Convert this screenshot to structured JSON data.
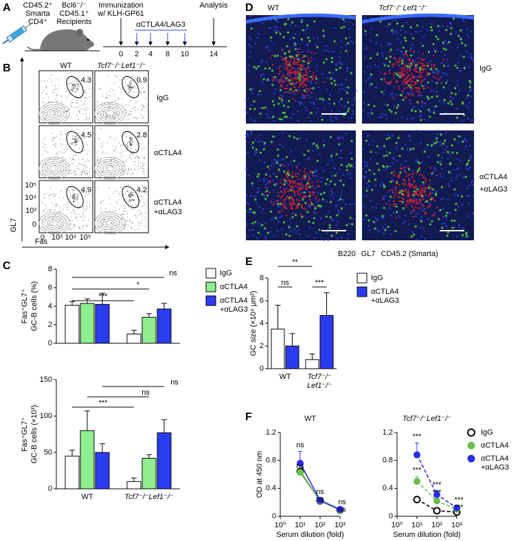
{
  "panel_labels": [
    "A",
    "B",
    "C",
    "D",
    "E",
    "F"
  ],
  "panel_a": {
    "donor": [
      "CD45.2⁺",
      "Smarta",
      "CD4⁺"
    ],
    "recipients": [
      "Bcl6⁻/⁻",
      "CD45.1⁺",
      "Recipients"
    ],
    "immunization": [
      "Immunization",
      "w/ KLH-GP61"
    ],
    "treatment": "αCTLA4/LAG3",
    "analysis": "Analysis",
    "days": [
      0,
      2,
      4,
      8,
      10,
      14
    ]
  },
  "panel_b": {
    "columns": [
      "WT",
      "Tcf7⁻/⁻Lef1⁻/⁻"
    ],
    "rows": [
      "IgG",
      "αCTLA4",
      "αCTLA4 +αLAG3"
    ],
    "gate_values": [
      [
        4.3,
        0.9
      ],
      [
        4.5,
        2.8
      ],
      [
        4.9,
        4.2
      ]
    ],
    "x_label": "Fas",
    "y_label": "GL7",
    "x_ticks": [
      "0",
      "10³",
      "10⁴",
      "10⁵"
    ],
    "y_ticks": [
      "10⁵",
      "10⁴",
      "10³",
      "0"
    ]
  },
  "panel_d": {
    "columns": [
      "WT",
      "Tcf7⁻/⁻Lef1⁻/⁻"
    ],
    "rows": [
      "IgG",
      "αCTLA4 +αLAG3"
    ],
    "stains": [
      {
        "name": "B220",
        "color": "#2f46f0"
      },
      {
        "name": "GL7",
        "color": "#e0222a"
      },
      {
        "name": "CD45.2 (Smarta)",
        "color": "#4cbb3c"
      }
    ]
  },
  "chart_data": [
    {
      "type": "bar",
      "ylabel": [
        "Fas⁺GL7⁺",
        "GC-B cells (%)"
      ],
      "categories": [
        null,
        null
      ],
      "ylim": [
        0,
        8
      ],
      "yticks": [
        0,
        2,
        4,
        6,
        8
      ],
      "series": [
        {
          "name": "IgG",
          "color": "#ffffff",
          "values": [
            4.1,
            1.0
          ],
          "errors": [
            0.4,
            0.4
          ]
        },
        {
          "name": "αCTLA4",
          "color": "#90ee90",
          "values": [
            4.3,
            2.8
          ],
          "errors": [
            0.5,
            0.4
          ]
        },
        {
          "name": "αCTLA4 +αLAG3",
          "color": "#2b3cf0",
          "values": [
            4.2,
            3.7
          ],
          "errors": [
            1.2,
            0.6
          ]
        }
      ],
      "annotations": [
        "***",
        "*",
        "ns"
      ],
      "legend": true
    },
    {
      "type": "bar",
      "ylabel": [
        "Fas⁺GL7⁺",
        "GC-B cells (×10³)"
      ],
      "categories": [
        "WT",
        "Tcf7⁻/⁻Lef1⁻/⁻"
      ],
      "ylim": [
        0,
        150
      ],
      "yticks": [
        0,
        50,
        100,
        150
      ],
      "series": [
        {
          "name": "IgG",
          "color": "#ffffff",
          "values": [
            45,
            10
          ],
          "errors": [
            8,
            5
          ]
        },
        {
          "name": "αCTLA4",
          "color": "#90ee90",
          "values": [
            80,
            42
          ],
          "errors": [
            27,
            5
          ]
        },
        {
          "name": "αCTLA4 +αLAG3",
          "color": "#2b3cf0",
          "values": [
            50,
            77
          ],
          "errors": [
            12,
            18
          ]
        }
      ],
      "annotations": [
        "***",
        "ns",
        "ns"
      ],
      "legend": false
    },
    {
      "type": "bar",
      "ylabel": [
        "GC size (×10⁴ μm²)"
      ],
      "categories": [
        "WT",
        "Tcf7⁻/⁻ Lef1⁻/⁻"
      ],
      "ylim": [
        0,
        8
      ],
      "yticks": [
        0,
        2,
        4,
        6,
        8
      ],
      "series": [
        {
          "name": "IgG",
          "color": "#ffffff",
          "values": [
            3.5,
            0.8
          ],
          "errors": [
            2.1,
            0.5
          ]
        },
        {
          "name": "αCTLA4 +αLAG3",
          "color": "#2b3cf0",
          "values": [
            2.0,
            4.7
          ],
          "errors": [
            1.1,
            2.0
          ]
        }
      ],
      "annotations": [
        "**",
        "ns",
        "***"
      ],
      "legend": true
    },
    {
      "type": "line",
      "title": "WT",
      "xlabel": "Serum dilution (fold)",
      "ylabel": "OD at 450 nm",
      "x": [
        10,
        100,
        1000
      ],
      "xlim": [
        1,
        1000
      ],
      "xticks": [
        {
          "value": 1,
          "label": "10⁰"
        },
        {
          "value": 10,
          "label": "10¹"
        },
        {
          "value": 100,
          "label": "10²"
        },
        {
          "value": 1000,
          "label": "10³"
        }
      ],
      "log_x": true,
      "ylim": [
        0,
        1.2
      ],
      "yticks": [
        0,
        0.4,
        0.8,
        1.2
      ],
      "dashed": false,
      "series": [
        {
          "name": "IgG",
          "color": "#000000",
          "open": true,
          "values": [
            0.64,
            0.22,
            0.09
          ]
        },
        {
          "name": "αCTLA4",
          "color": "#6abf4b",
          "values": [
            0.63,
            0.22,
            0.09
          ],
          "significance": [
            "ns",
            "ns",
            "ns"
          ]
        },
        {
          "name": "αCTLA4 +αLAG3",
          "color": "#2b2bea",
          "values": [
            0.76,
            0.23,
            0.1
          ],
          "errors": [
            0.17,
            0.03,
            0.01
          ],
          "significance": [
            "ns",
            "ns",
            "ns"
          ]
        }
      ],
      "legend": false
    },
    {
      "type": "line",
      "title": "Tcf7⁻/⁻Lef1⁻/⁻",
      "xlabel": "Serum dilution (fold)",
      "x": [
        10,
        100,
        1000
      ],
      "xlim": [
        1,
        1000
      ],
      "xticks": [
        {
          "value": 1,
          "label": "10⁰"
        },
        {
          "value": 10,
          "label": "10¹"
        },
        {
          "value": 100,
          "label": "10²"
        },
        {
          "value": 1000,
          "label": "10³"
        }
      ],
      "log_x": true,
      "ylim": [
        0,
        1.2
      ],
      "yticks": [
        0,
        0.4,
        0.8,
        1.2
      ],
      "dashed": true,
      "series": [
        {
          "name": "IgG",
          "color": "#000000",
          "open": true,
          "values": [
            0.24,
            0.08,
            0.06
          ]
        },
        {
          "name": "αCTLA4",
          "color": "#6abf4b",
          "values": [
            0.5,
            0.22,
            0.1
          ],
          "errors": [
            0.07,
            0.03,
            0.01
          ],
          "significance": [
            "***",
            "***",
            "***"
          ]
        },
        {
          "name": "αCTLA4 +αLAG3",
          "color": "#2b2bea",
          "values": [
            0.88,
            0.31,
            0.12
          ],
          "errors": [
            0.17,
            0.05,
            0.02
          ],
          "significance": [
            "***",
            "***",
            "***"
          ]
        }
      ],
      "legend": true
    }
  ]
}
